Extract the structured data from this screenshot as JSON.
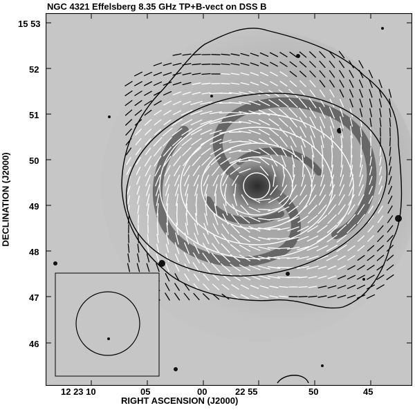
{
  "figure": {
    "title": "NGC 4321 Effelsberg 8.35 GHz TP+B-vect on DSS B",
    "x_axis_label": "RIGHT ASCENSION (J2000)",
    "y_axis_label": "DECLINATION (J2000)",
    "x_tick_labels": [
      "12 23 10",
      "05",
      "00",
      "22 55",
      "50",
      "45"
    ],
    "y_tick_labels": [
      "15 53",
      "52",
      "51",
      "50",
      "49",
      "48",
      "47",
      "46"
    ],
    "inset": "beam size circle (lower left)",
    "colors": {
      "background_image": "#bdbdbd",
      "vectors": "#ffffff",
      "contours": "#000000"
    }
  }
}
